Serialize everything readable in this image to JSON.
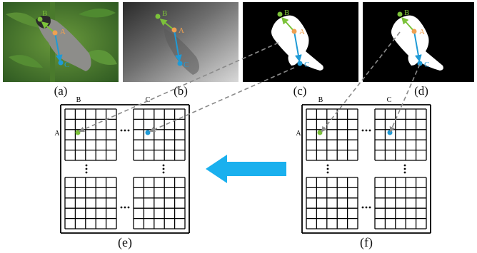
{
  "panels": {
    "a": {
      "caption": "(a)",
      "points": {
        "A": "A",
        "B": "B",
        "C": "C"
      }
    },
    "b": {
      "caption": "(b)",
      "points": {
        "A": "A",
        "B": "B",
        "C": "C"
      }
    },
    "c": {
      "caption": "(c)",
      "points": {
        "A": "A",
        "B": "B",
        "C": "C"
      }
    },
    "d": {
      "caption": "(d)",
      "points": {
        "A": "A",
        "B": "B",
        "C": "C"
      }
    },
    "e": {
      "caption": "(e)",
      "row_label": "A",
      "col_labels": [
        "B",
        "C"
      ]
    },
    "f": {
      "caption": "(f)",
      "row_label": "A",
      "col_labels": [
        "B",
        "C"
      ]
    }
  },
  "colors": {
    "point_A": "#f0a050",
    "point_B": "#7cc23a",
    "point_C": "#1f9ad6",
    "arrow_big": "#1ab0ee",
    "dashed": "#8a8a8a"
  },
  "icons": [
    "ellipsis-horizontal-icon",
    "ellipsis-vertical-icon",
    "left-arrow-icon"
  ]
}
